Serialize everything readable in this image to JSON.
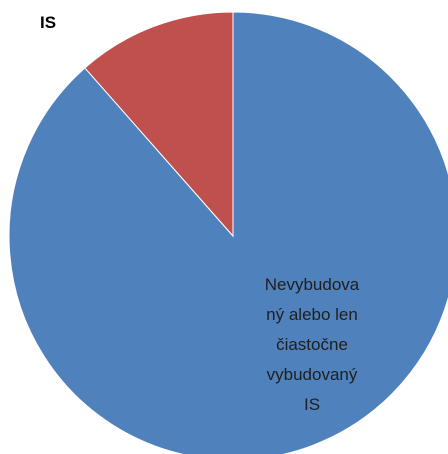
{
  "chart_data": {
    "type": "pie",
    "title": "",
    "slices": [
      {
        "label_lines": [
          "Nevybudova",
          "ný alebo len",
          "čiastočne",
          "vybudovaný",
          "IS"
        ],
        "value": 88.5,
        "color": "#4F81BD",
        "label_color": "#1f1f1f"
      },
      {
        "label_lines": [
          "vybudovaný",
          "IS"
        ],
        "value": 11.5,
        "color": "#C0504D",
        "label_color": "#000000"
      }
    ],
    "grid": false,
    "legend": "none"
  }
}
